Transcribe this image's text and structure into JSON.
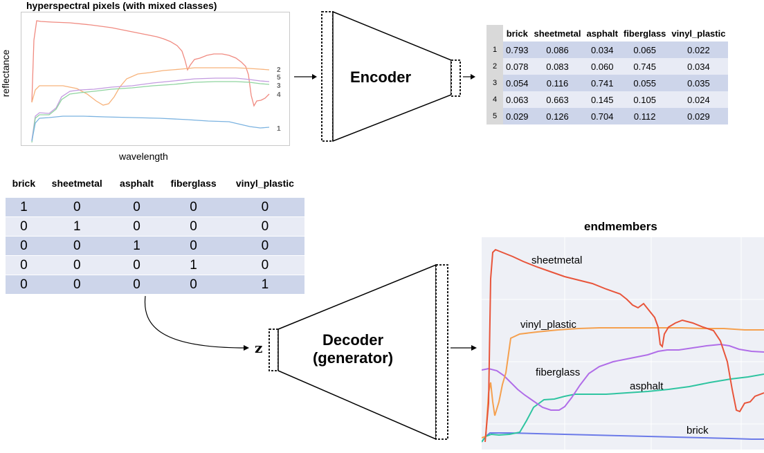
{
  "spectra_plot": {
    "title": "hyperspectral pixels (with mixed classes)",
    "ylabel": "reflectance",
    "xlabel": "wavelength",
    "series_labels": [
      "2",
      "5",
      "3",
      "4",
      "1"
    ]
  },
  "encoder": {
    "label": "Encoder"
  },
  "decoder": {
    "line1": "Decoder",
    "line2": "(generator)",
    "z_label": "z"
  },
  "encoder_output_table": {
    "columns": [
      "brick",
      "sheetmetal",
      "asphalt",
      "fiberglass",
      "vinyl_plastic"
    ],
    "rows": [
      {
        "index": "1",
        "values": [
          "0.793",
          "0.086",
          "0.034",
          "0.065",
          "0.022"
        ]
      },
      {
        "index": "2",
        "values": [
          "0.078",
          "0.083",
          "0.060",
          "0.745",
          "0.034"
        ]
      },
      {
        "index": "3",
        "values": [
          "0.054",
          "0.116",
          "0.741",
          "0.055",
          "0.035"
        ]
      },
      {
        "index": "4",
        "values": [
          "0.063",
          "0.663",
          "0.145",
          "0.105",
          "0.024"
        ]
      },
      {
        "index": "5",
        "values": [
          "0.029",
          "0.126",
          "0.704",
          "0.112",
          "0.029"
        ]
      }
    ]
  },
  "onehot_table": {
    "columns": [
      "brick",
      "sheetmetal",
      "asphalt",
      "fiberglass",
      "vinyl_plastic"
    ],
    "rows": [
      [
        "1",
        "0",
        "0",
        "0",
        "0"
      ],
      [
        "0",
        "1",
        "0",
        "0",
        "0"
      ],
      [
        "0",
        "0",
        "1",
        "0",
        "0"
      ],
      [
        "0",
        "0",
        "0",
        "1",
        "0"
      ],
      [
        "0",
        "0",
        "0",
        "0",
        "1"
      ]
    ]
  },
  "endmembers_plot": {
    "title": "endmembers",
    "labels": {
      "sheetmetal": "sheetmetal",
      "vinyl_plastic": "vinyl_plastic",
      "fiberglass": "fiberglass",
      "asphalt": "asphalt",
      "brick": "brick"
    }
  },
  "colors": {
    "sheetmetal": "#e8543a",
    "vinyl_plastic": "#f5a04e",
    "fiberglass": "#b06de8",
    "asphalt": "#2ec4a0",
    "brick": "#6b7ae8",
    "table_header_gray": "#d9d9d9",
    "row_dark": "#cdd5ea",
    "row_light": "#e8ebf5"
  }
}
